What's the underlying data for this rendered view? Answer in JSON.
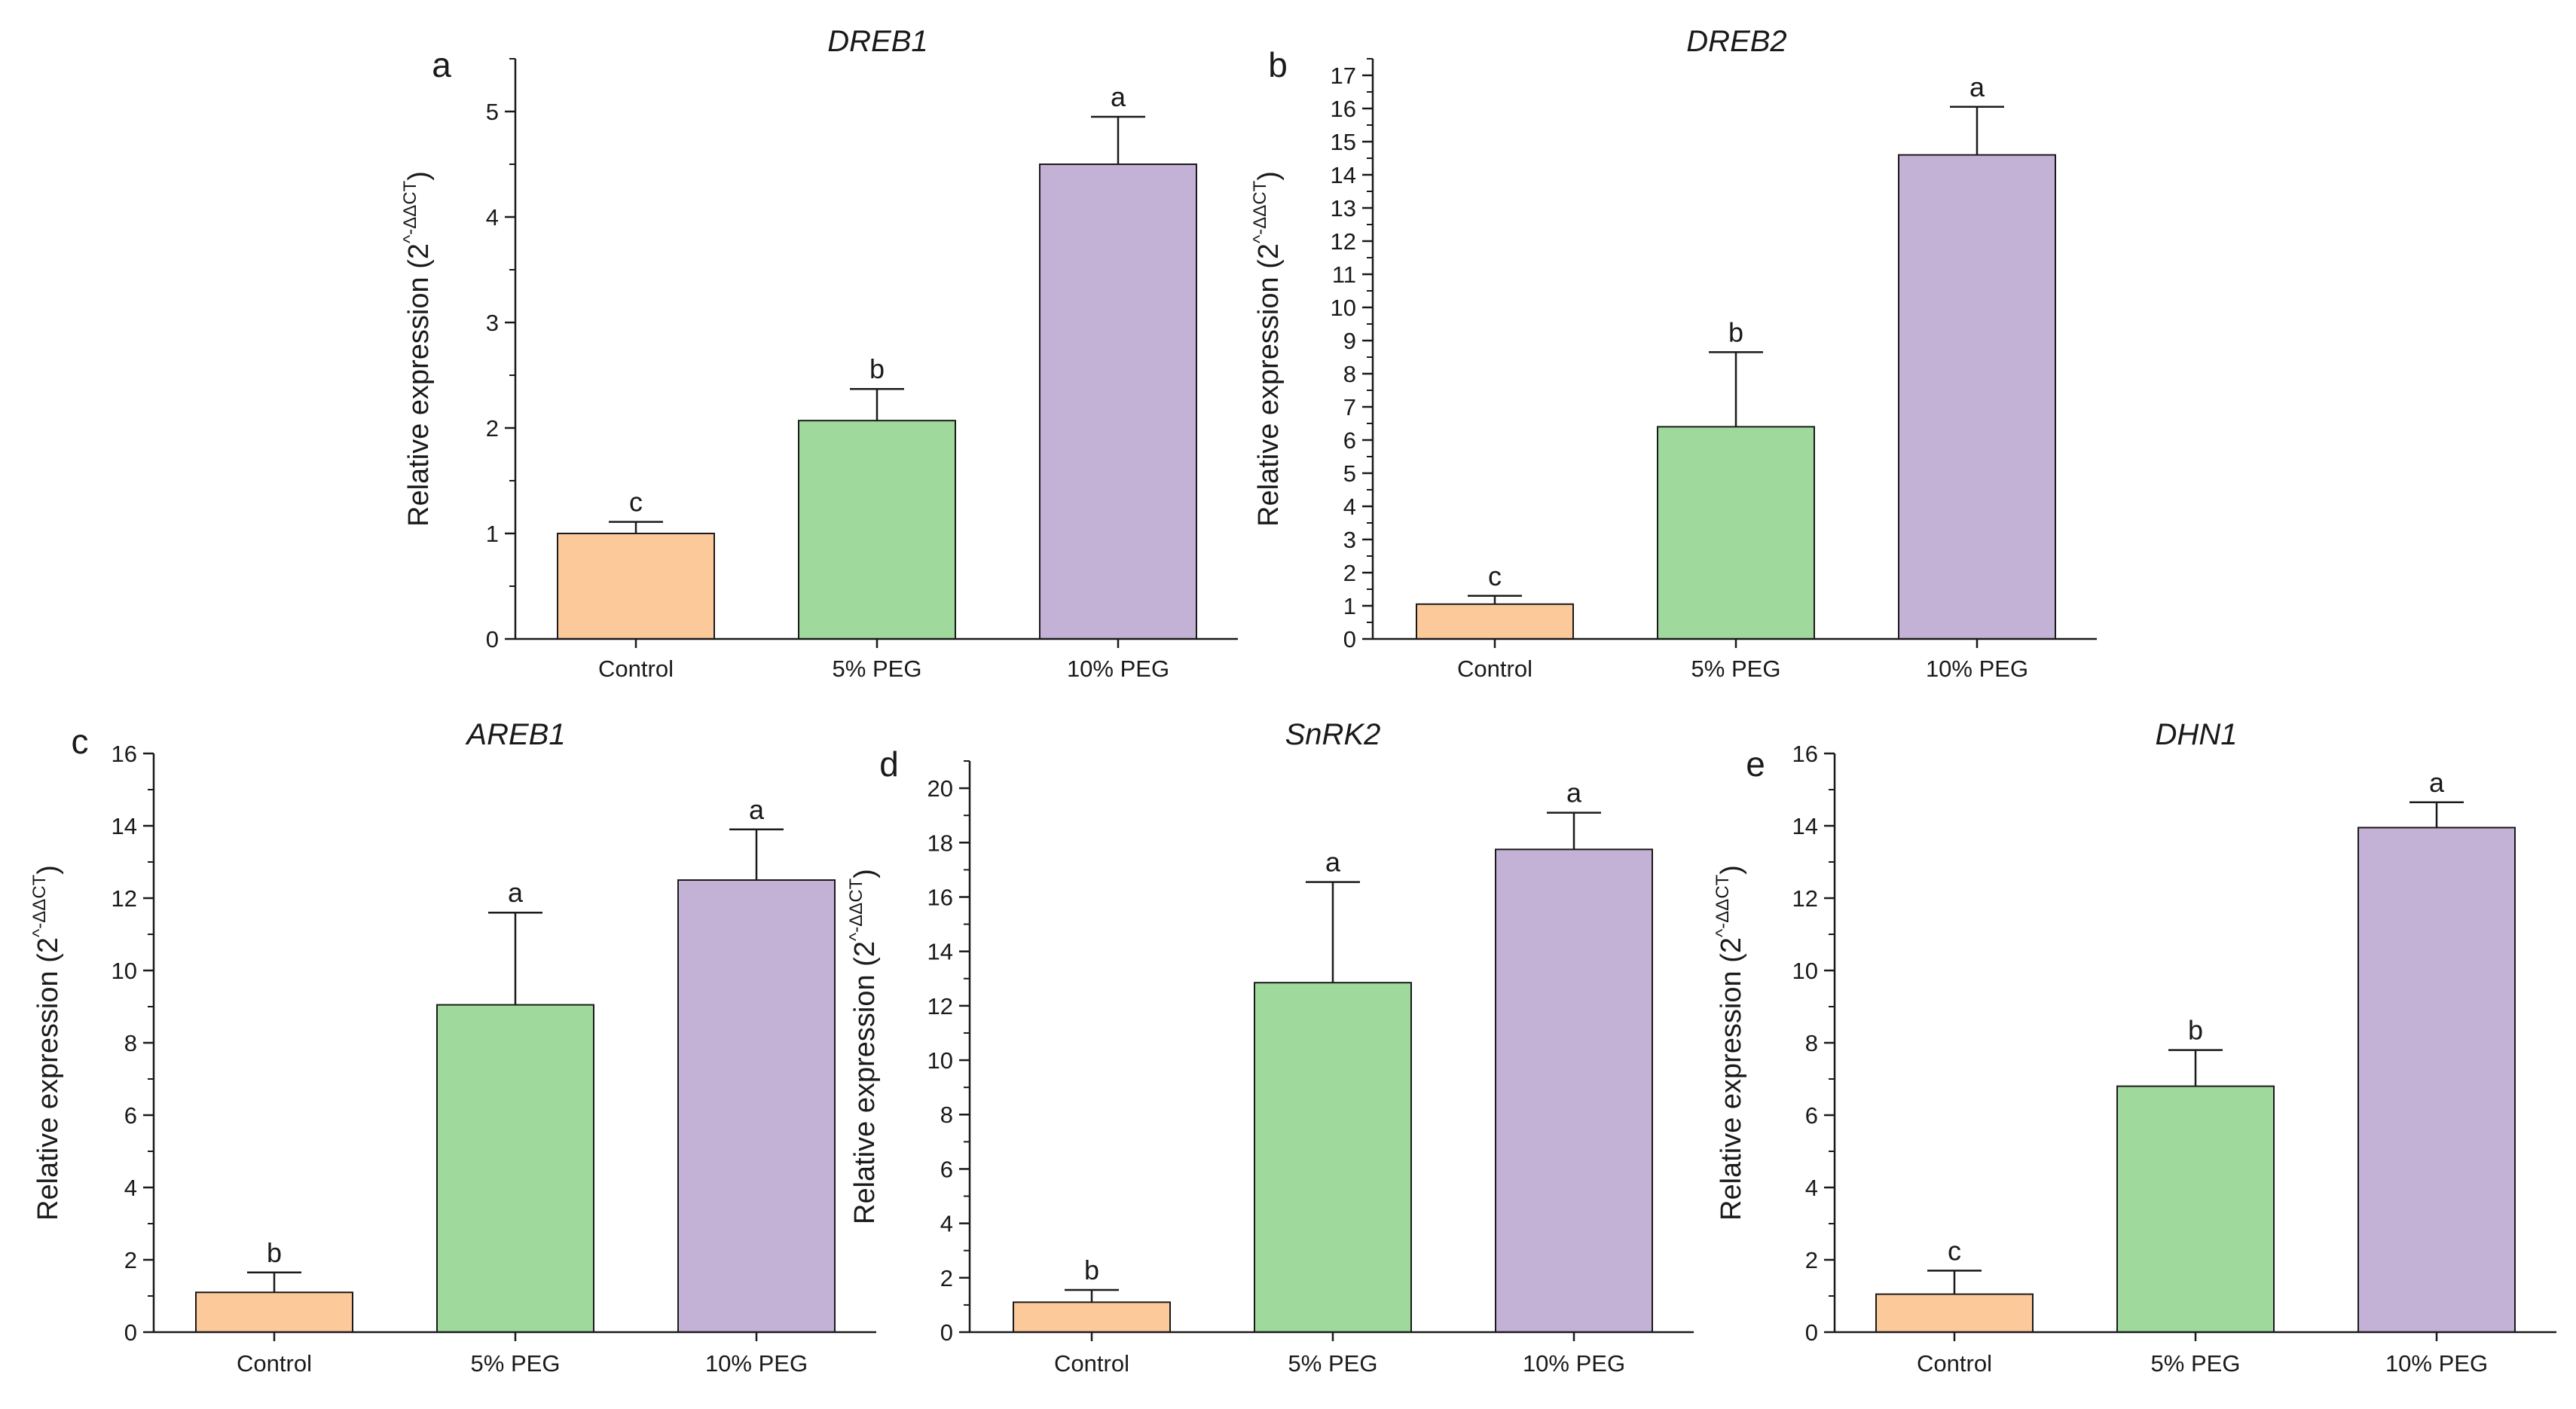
{
  "figure": {
    "charts": [
      {
        "letter": "a",
        "title": "DREB1",
        "ylabel": {
          "text": "Relative expression (2",
          "sup": "^-ΔΔCT",
          "close": ")"
        },
        "ylim": [
          0,
          5.5
        ],
        "ticks": [
          0,
          1,
          2,
          3,
          4,
          5
        ]
      },
      {
        "letter": "b",
        "title": "DREB2",
        "ylabel": {
          "text": "Relative expression (2",
          "sup": "^-ΔΔCT",
          "close": ")"
        },
        "ylim": [
          0,
          17.5
        ],
        "ticks": [
          0,
          1,
          2,
          3,
          4,
          5,
          6,
          7,
          8,
          9,
          10,
          11,
          12,
          13,
          14,
          15,
          16,
          17
        ]
      },
      {
        "letter": "c",
        "title": "AREB1",
        "ylabel": {
          "text": "Relative expression (2",
          "sup": "^-ΔΔCT",
          "close": ")"
        },
        "ylim": [
          0,
          16
        ],
        "ticks": [
          0,
          2,
          4,
          6,
          8,
          10,
          12,
          14,
          16
        ]
      },
      {
        "letter": "d",
        "title": "SnRK2",
        "ylabel": {
          "text": "Relative expression (2",
          "sup": "^-ΔΔCT",
          "close": ")"
        },
        "ylim": [
          0,
          21
        ],
        "ticks": [
          0,
          2,
          4,
          6,
          8,
          10,
          12,
          14,
          16,
          18,
          20
        ]
      },
      {
        "letter": "e",
        "title": "DHN1",
        "ylabel": {
          "text": "Relative expression (2",
          "sup": "^-ΔΔCT",
          "close": ")"
        },
        "ylim": [
          0,
          16
        ],
        "ticks": [
          0,
          2,
          4,
          6,
          8,
          10,
          12,
          14,
          16
        ]
      }
    ]
  },
  "colors": {
    "control": "#fbc99a",
    "peg5": "#9fd99c",
    "peg10": "#c3b1d6",
    "axis": "#1a1a1a"
  },
  "chart_data": [
    {
      "type": "bar",
      "title": "DREB1",
      "categories": [
        "Control",
        "5% PEG",
        "10% PEG"
      ],
      "values": [
        1.0,
        2.07,
        4.5
      ],
      "errors": [
        0.11,
        0.3,
        0.45
      ],
      "significance": [
        "c",
        "b",
        "a"
      ],
      "ylabel": "Relative expression (2^-ΔΔCT)",
      "ylim": [
        0,
        5.5
      ]
    },
    {
      "type": "bar",
      "title": "DREB2",
      "categories": [
        "Control",
        "5% PEG",
        "10% PEG"
      ],
      "values": [
        1.05,
        6.4,
        14.6
      ],
      "errors": [
        0.25,
        2.25,
        1.45
      ],
      "significance": [
        "c",
        "b",
        "a"
      ],
      "ylabel": "Relative expression (2^-ΔΔCT)",
      "ylim": [
        0,
        17.5
      ]
    },
    {
      "type": "bar",
      "title": "AREB1",
      "categories": [
        "Control",
        "5% PEG",
        "10% PEG"
      ],
      "values": [
        1.1,
        9.05,
        12.5
      ],
      "errors": [
        0.55,
        2.55,
        1.4
      ],
      "significance": [
        "b",
        "a",
        "a"
      ],
      "ylabel": "Relative expression (2^-ΔΔCT)",
      "ylim": [
        0,
        16
      ]
    },
    {
      "type": "bar",
      "title": "SnRK2",
      "categories": [
        "Control",
        "5% PEG",
        "10% PEG"
      ],
      "values": [
        1.1,
        12.85,
        17.75
      ],
      "errors": [
        0.45,
        3.7,
        1.35
      ],
      "significance": [
        "b",
        "a",
        "a"
      ],
      "ylabel": "Relative expression (2^-ΔΔCT)",
      "ylim": [
        0,
        21
      ]
    },
    {
      "type": "bar",
      "title": "DHN1",
      "categories": [
        "Control",
        "5% PEG",
        "10% PEG"
      ],
      "values": [
        1.05,
        6.8,
        13.95
      ],
      "errors": [
        0.65,
        1.0,
        0.7
      ],
      "significance": [
        "c",
        "b",
        "a"
      ],
      "ylabel": "Relative expression (2^-ΔΔCT)",
      "ylim": [
        0,
        16
      ]
    }
  ]
}
